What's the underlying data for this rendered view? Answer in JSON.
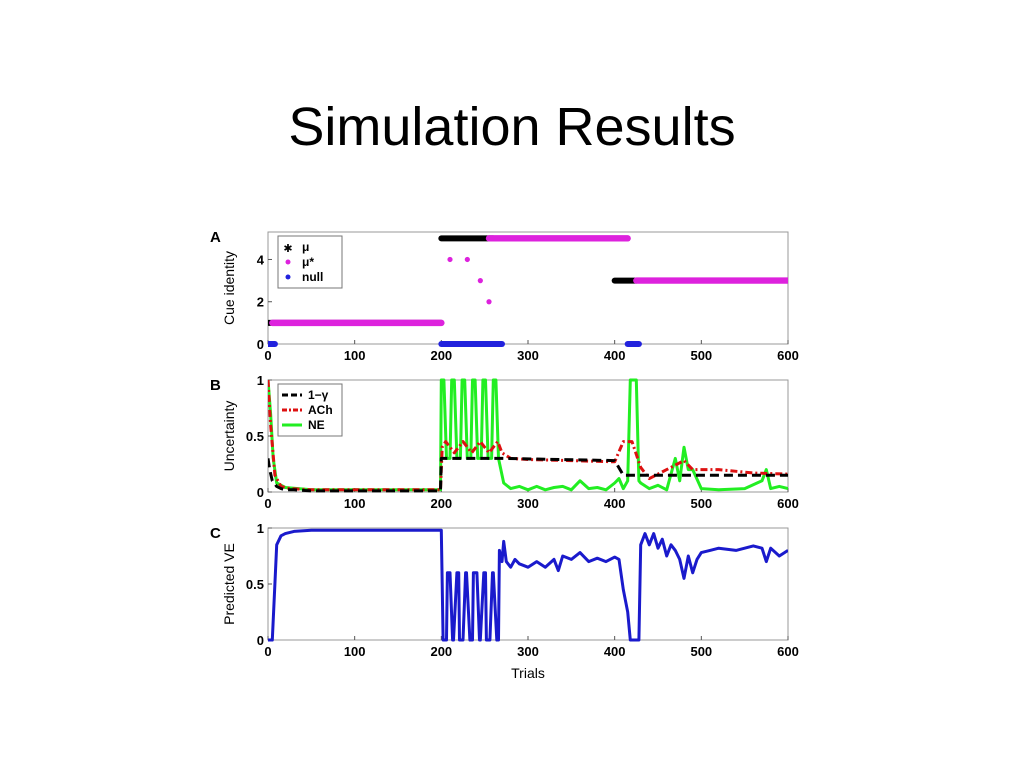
{
  "slide": {
    "title": "Simulation Results"
  },
  "chart_data": [
    {
      "panel_letter": "A",
      "type": "scatter",
      "ylabel": "Cue identity",
      "xlim": [
        0,
        600
      ],
      "ylim": [
        0,
        5.3
      ],
      "xticks": [
        "0",
        "100",
        "200",
        "300",
        "400",
        "500",
        "600"
      ],
      "yticks": [
        "0",
        "2",
        "4"
      ],
      "ytick_values": [
        0,
        2,
        4
      ],
      "legend": {
        "placement": "top-left",
        "entries": [
          "μ",
          "μ*",
          "null"
        ]
      },
      "colors": {
        "mu": "#000000",
        "mu_star": "#dd22dd",
        "null": "#2222dd"
      },
      "series": [
        {
          "name": "μ",
          "segments": [
            {
              "x": [
                0,
                200
              ],
              "y": 1
            },
            {
              "x": [
                200,
                260
              ],
              "y": 5
            },
            {
              "x": [
                400,
                425
              ],
              "y": 3
            }
          ]
        },
        {
          "name": "μ*",
          "segments": [
            {
              "x": [
                5,
                200
              ],
              "y": 1
            },
            {
              "x": [
                255,
                415
              ],
              "y": 5
            },
            {
              "x": [
                425,
                600
              ],
              "y": 3
            }
          ],
          "points": [
            {
              "x": 210,
              "y": 4
            },
            {
              "x": 230,
              "y": 4
            },
            {
              "x": 245,
              "y": 3
            },
            {
              "x": 255,
              "y": 2
            }
          ]
        },
        {
          "name": "null",
          "segments": [
            {
              "x": [
                0,
                8
              ],
              "y": 0
            },
            {
              "x": [
                200,
                270
              ],
              "y": 0
            },
            {
              "x": [
                415,
                428
              ],
              "y": 0
            }
          ]
        }
      ]
    },
    {
      "panel_letter": "B",
      "type": "line",
      "ylabel": "Uncertainty",
      "xlim": [
        0,
        600
      ],
      "ylim": [
        0,
        1
      ],
      "xticks": [
        "0",
        "100",
        "200",
        "300",
        "400",
        "500",
        "600"
      ],
      "yticks": [
        "0",
        "0.5",
        "1"
      ],
      "ytick_values": [
        0,
        0.5,
        1
      ],
      "legend": {
        "placement": "top-left",
        "entries": [
          "1−γ",
          "ACh",
          "NE"
        ]
      },
      "colors": {
        "gamma": "#000000",
        "ach": "#dd1111",
        "ne": "#22ee22"
      },
      "series": [
        {
          "name": "1−γ",
          "x": [
            0,
            2,
            5,
            10,
            15,
            20,
            30,
            50,
            100,
            150,
            199,
            200,
            270,
            271,
            400,
            410,
            420,
            600
          ],
          "y": [
            0.3,
            0.2,
            0.1,
            0.05,
            0.03,
            0.02,
            0.02,
            0.01,
            0.01,
            0.01,
            0.01,
            0.3,
            0.3,
            0.3,
            0.28,
            0.15,
            0.15,
            0.15
          ]
        },
        {
          "name": "ACh",
          "x": [
            0,
            3,
            8,
            15,
            25,
            50,
            100,
            199,
            201,
            205,
            215,
            225,
            235,
            245,
            255,
            265,
            270,
            280,
            300,
            350,
            400,
            410,
            420,
            430,
            440,
            460,
            480,
            490,
            520,
            560,
            600
          ],
          "y": [
            1.0,
            0.6,
            0.15,
            0.05,
            0.03,
            0.02,
            0.02,
            0.02,
            0.4,
            0.45,
            0.35,
            0.45,
            0.35,
            0.45,
            0.35,
            0.45,
            0.35,
            0.3,
            0.29,
            0.28,
            0.27,
            0.45,
            0.45,
            0.22,
            0.12,
            0.2,
            0.28,
            0.2,
            0.2,
            0.17,
            0.16
          ]
        },
        {
          "name": "NE",
          "x": [
            0,
            3,
            6,
            10,
            20,
            50,
            100,
            199,
            200,
            203,
            206,
            210,
            212,
            215,
            218,
            222,
            224,
            227,
            230,
            234,
            236,
            239,
            242,
            246,
            248,
            251,
            254,
            258,
            260,
            263,
            266,
            272,
            280,
            290,
            300,
            310,
            320,
            330,
            340,
            350,
            360,
            370,
            380,
            390,
            400,
            405,
            410,
            415,
            418,
            420,
            425,
            428,
            430,
            440,
            450,
            460,
            470,
            475,
            480,
            485,
            490,
            500,
            520,
            550,
            570,
            575,
            580,
            590,
            600
          ],
          "y": [
            1.0,
            0.7,
            0.3,
            0.08,
            0.04,
            0.02,
            0.02,
            0.02,
            1.0,
            1.0,
            0.3,
            0.3,
            1.0,
            1.0,
            0.3,
            0.3,
            1.0,
            1.0,
            0.3,
            0.3,
            1.0,
            1.0,
            0.3,
            0.3,
            1.0,
            1.0,
            0.3,
            0.3,
            1.0,
            1.0,
            0.3,
            0.08,
            0.03,
            0.05,
            0.02,
            0.05,
            0.02,
            0.04,
            0.05,
            0.02,
            0.1,
            0.03,
            0.04,
            0.02,
            0.08,
            0.12,
            0.03,
            0.1,
            1.0,
            1.0,
            1.0,
            0.1,
            0.08,
            0.03,
            0.06,
            0.02,
            0.3,
            0.1,
            0.4,
            0.2,
            0.2,
            0.03,
            0.02,
            0.03,
            0.1,
            0.2,
            0.03,
            0.05,
            0.03
          ]
        }
      ]
    },
    {
      "panel_letter": "C",
      "type": "line",
      "ylabel": "Predicted VE",
      "xlabel": "Trials",
      "xlim": [
        0,
        600
      ],
      "ylim": [
        0,
        1
      ],
      "xticks": [
        "0",
        "100",
        "200",
        "300",
        "400",
        "500",
        "600"
      ],
      "yticks": [
        "0",
        "0.5",
        "1"
      ],
      "ytick_values": [
        0,
        0.5,
        1
      ],
      "colors": {
        "ve": "#1a1acc"
      },
      "series": [
        {
          "name": "",
          "x": [
            0,
            5,
            8,
            10,
            15,
            20,
            30,
            50,
            100,
            199,
            200,
            201,
            202,
            206,
            207,
            210,
            213,
            214,
            218,
            220,
            221,
            225,
            228,
            229,
            233,
            236,
            237,
            241,
            244,
            245,
            249,
            251,
            252,
            256,
            259,
            260,
            264,
            266,
            267,
            270,
            272,
            275,
            280,
            285,
            290,
            300,
            310,
            320,
            330,
            335,
            340,
            350,
            360,
            370,
            380,
            390,
            400,
            405,
            410,
            415,
            418,
            420,
            425,
            428,
            430,
            435,
            440,
            445,
            450,
            455,
            460,
            465,
            470,
            475,
            480,
            485,
            490,
            495,
            500,
            510,
            520,
            540,
            560,
            570,
            575,
            580,
            590,
            600
          ],
          "y": [
            0,
            0,
            0.5,
            0.85,
            0.93,
            0.95,
            0.97,
            0.98,
            0.98,
            0.98,
            0.98,
            0.5,
            0,
            0,
            0.6,
            0.6,
            0,
            0,
            0.6,
            0.6,
            0,
            0,
            0.6,
            0.6,
            0,
            0,
            0.6,
            0.6,
            0,
            0,
            0.6,
            0.6,
            0,
            0,
            0.6,
            0.6,
            0,
            0,
            0.8,
            0.7,
            0.88,
            0.7,
            0.65,
            0.72,
            0.68,
            0.65,
            0.7,
            0.65,
            0.72,
            0.62,
            0.75,
            0.72,
            0.78,
            0.7,
            0.73,
            0.7,
            0.74,
            0.72,
            0.45,
            0.25,
            0.0,
            0.0,
            0.0,
            0.0,
            0.85,
            0.95,
            0.85,
            0.95,
            0.82,
            0.9,
            0.75,
            0.85,
            0.8,
            0.72,
            0.55,
            0.75,
            0.6,
            0.72,
            0.78,
            0.8,
            0.82,
            0.8,
            0.84,
            0.82,
            0.7,
            0.82,
            0.75,
            0.8
          ]
        }
      ]
    }
  ]
}
